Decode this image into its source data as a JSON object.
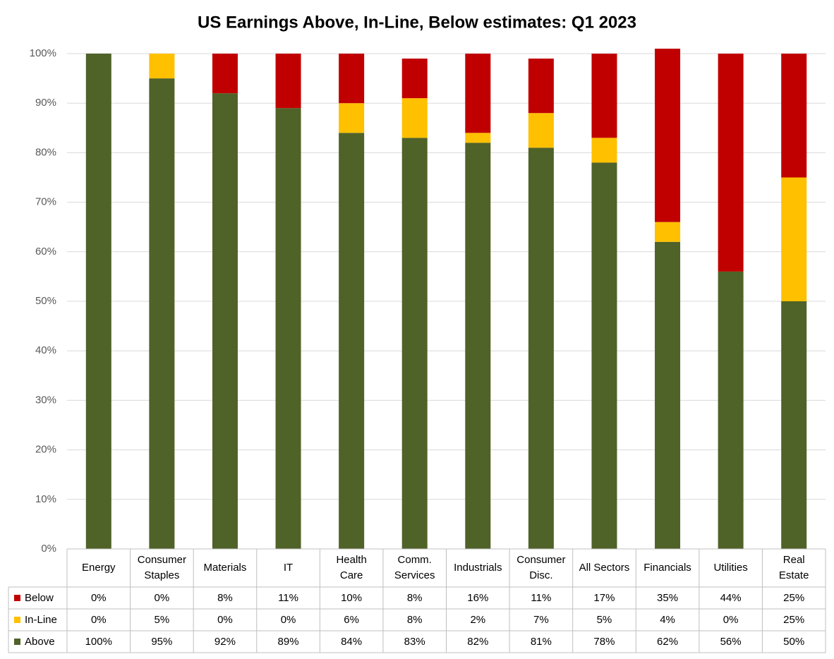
{
  "chart_data": {
    "type": "stacked_bar",
    "title": "US Earnings Above, In-Line, Below estimates: Q1 2023",
    "categories": [
      "Energy",
      "Consumer Staples",
      "Materials",
      "IT",
      "Health Care",
      "Comm. Services",
      "Industrials",
      "Consumer Disc.",
      "All Sectors",
      "Financials",
      "Utilities",
      "Real Estate"
    ],
    "series": [
      {
        "name": "Below",
        "color": "#c00000",
        "values": [
          0,
          0,
          8,
          11,
          10,
          8,
          16,
          11,
          17,
          35,
          44,
          25
        ],
        "value_labels": [
          "0%",
          "0%",
          "8%",
          "11%",
          "10%",
          "8%",
          "16%",
          "11%",
          "17%",
          "35%",
          "44%",
          "25%"
        ]
      },
      {
        "name": "In-Line",
        "color": "#ffc000",
        "values": [
          0,
          5,
          0,
          0,
          6,
          8,
          2,
          7,
          5,
          4,
          0,
          25
        ],
        "value_labels": [
          "0%",
          "5%",
          "0%",
          "0%",
          "6%",
          "8%",
          "2%",
          "7%",
          "5%",
          "4%",
          "0%",
          "25%"
        ]
      },
      {
        "name": "Above",
        "color": "#4f6228",
        "values": [
          100,
          95,
          92,
          89,
          84,
          83,
          82,
          81,
          78,
          62,
          56,
          50
        ],
        "value_labels": [
          "100%",
          "95%",
          "92%",
          "89%",
          "84%",
          "83%",
          "82%",
          "81%",
          "78%",
          "62%",
          "56%",
          "50%"
        ]
      }
    ],
    "stack_order": [
      "Above",
      "In-Line",
      "Below"
    ],
    "ylim": [
      0,
      100
    ],
    "yticks": [
      {
        "value": 0,
        "label": "0%"
      },
      {
        "value": 10,
        "label": "10%"
      },
      {
        "value": 20,
        "label": "20%"
      },
      {
        "value": 30,
        "label": "30%"
      },
      {
        "value": 40,
        "label": "40%"
      },
      {
        "value": 50,
        "label": "50%"
      },
      {
        "value": 60,
        "label": "60%"
      },
      {
        "value": 70,
        "label": "70%"
      },
      {
        "value": 80,
        "label": "80%"
      },
      {
        "value": 90,
        "label": "90%"
      },
      {
        "value": 100,
        "label": "100%"
      }
    ],
    "grid": true,
    "data_table": true
  }
}
